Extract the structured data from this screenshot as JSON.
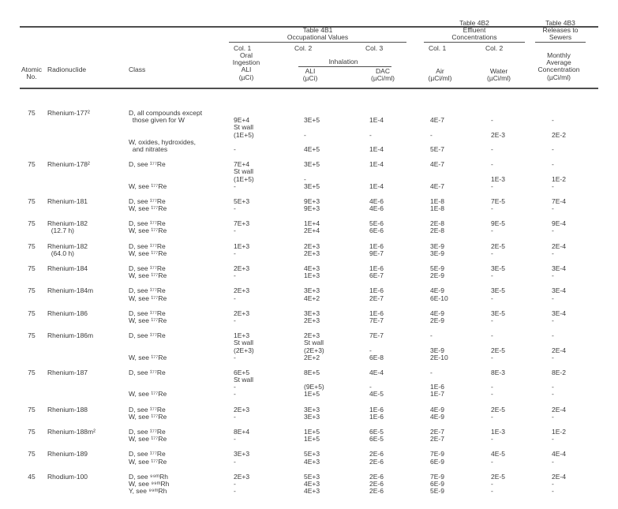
{
  "header": {
    "tables": {
      "t4b1": [
        "Table 4B1",
        "Occupational Values"
      ],
      "t4b2": [
        "Table 4B2",
        "Effluent",
        "Concentrations"
      ],
      "t4b3": [
        "Table 4B3",
        "Releases to",
        "Sewers"
      ]
    },
    "cols": {
      "oral": "Col. 1",
      "inhal": "Col. 2",
      "dac": "Col. 3",
      "air": "Col. 1",
      "water": "Col. 2"
    },
    "oral_stack": [
      "Oral",
      "Ingestion",
      "ALI",
      "(µCi)"
    ],
    "inhalation": "Inhalation",
    "inhal_stack": [
      "ALI",
      "(µCi)"
    ],
    "dac_stack": [
      "DAC",
      "(µCi/ml)"
    ],
    "air_stack": [
      "Air",
      "(µCi/ml)"
    ],
    "water_stack": [
      "Water",
      "(µCi/ml)"
    ],
    "monthly_stack": [
      "Monthly",
      "Average",
      "Concentration",
      "(µCi/ml)"
    ],
    "atomic_stack": [
      "Atomic",
      "No."
    ],
    "radionuclide": "Radionuclide",
    "class_label": "Class"
  },
  "rows": [
    {
      "atomic": "75",
      "name": [
        "Rhenium-177²"
      ],
      "cls": [
        "D, all compounds except",
        "  those given for W",
        "",
        "",
        "W, oxides, hydroxides,",
        "  and nitrates"
      ],
      "oral": [
        "",
        "9E+4",
        "St wall",
        "(1E+5)",
        "",
        "-"
      ],
      "inhal": [
        "",
        "3E+5",
        "",
        "-",
        "",
        "4E+5"
      ],
      "dac": [
        "",
        "1E-4",
        "",
        "-",
        "",
        "1E-4"
      ],
      "air": [
        "",
        "4E-7",
        "",
        "-",
        "",
        "5E-7"
      ],
      "water": [
        "",
        "-",
        "",
        "2E-3",
        "",
        "-"
      ],
      "monthly": [
        "",
        "-",
        "",
        "2E-2",
        "",
        "-"
      ]
    },
    {
      "atomic": "75",
      "name": [
        "Rhenium-178²"
      ],
      "cls": [
        "D, see ¹⁷⁷Re",
        "",
        "",
        "W, see ¹⁷⁷Re"
      ],
      "oral": [
        "7E+4",
        "St wall",
        "(1E+5)",
        "-"
      ],
      "inhal": [
        "3E+5",
        "",
        "-",
        "3E+5"
      ],
      "dac": [
        "1E-4",
        "",
        "",
        "1E-4"
      ],
      "air": [
        "4E-7",
        "",
        "",
        "4E-7"
      ],
      "water": [
        "-",
        "",
        "1E-3",
        "-"
      ],
      "monthly": [
        "-",
        "",
        "1E-2",
        "-"
      ]
    },
    {
      "atomic": "75",
      "name": [
        "Rhenium-181"
      ],
      "cls": [
        "D, see ¹⁷⁷Re",
        "W, see ¹⁷⁷Re"
      ],
      "oral": [
        "5E+3",
        "-"
      ],
      "inhal": [
        "9E+3",
        "9E+3"
      ],
      "dac": [
        "4E-6",
        "4E-6"
      ],
      "air": [
        "1E-8",
        "1E-8"
      ],
      "water": [
        "7E-5",
        "-"
      ],
      "monthly": [
        "7E-4",
        "-"
      ]
    },
    {
      "atomic": "75",
      "name": [
        "Rhenium-182",
        "  (12.7 h)"
      ],
      "cls": [
        "D, see ¹⁷⁷Re",
        "W, see ¹⁷⁷Re"
      ],
      "oral": [
        "7E+3",
        "-"
      ],
      "inhal": [
        "1E+4",
        "2E+4"
      ],
      "dac": [
        "5E-6",
        "6E-6"
      ],
      "air": [
        "2E-8",
        "2E-8"
      ],
      "water": [
        "9E-5",
        "-"
      ],
      "monthly": [
        "9E-4",
        "-"
      ]
    },
    {
      "atomic": "75",
      "name": [
        "Rhenium-182",
        "  (64.0 h)"
      ],
      "cls": [
        "D, see ¹⁷⁷Re",
        "W, see ¹⁷⁷Re"
      ],
      "oral": [
        "1E+3",
        "-"
      ],
      "inhal": [
        "2E+3",
        "2E+3"
      ],
      "dac": [
        "1E-6",
        "9E-7"
      ],
      "air": [
        "3E-9",
        "3E-9"
      ],
      "water": [
        "2E-5",
        "-"
      ],
      "monthly": [
        "2E-4",
        "-"
      ]
    },
    {
      "atomic": "75",
      "name": [
        "Rhenium-184"
      ],
      "cls": [
        "D, see ¹⁷⁷Re",
        "W, see ¹⁷⁷Re"
      ],
      "oral": [
        "2E+3",
        "-"
      ],
      "inhal": [
        "4E+3",
        "1E+3"
      ],
      "dac": [
        "1E-6",
        "6E-7"
      ],
      "air": [
        "5E-9",
        "2E-9"
      ],
      "water": [
        "3E-5",
        "-"
      ],
      "monthly": [
        "3E-4",
        "-"
      ]
    },
    {
      "atomic": "75",
      "name": [
        "Rhenium-184m"
      ],
      "cls": [
        "D, see ¹⁷⁷Re",
        "W, see ¹⁷⁷Re"
      ],
      "oral": [
        "2E+3",
        "-"
      ],
      "inhal": [
        "3E+3",
        "4E+2"
      ],
      "dac": [
        "1E-6",
        "2E-7"
      ],
      "air": [
        "4E-9",
        "6E-10"
      ],
      "water": [
        "3E-5",
        "-"
      ],
      "monthly": [
        "3E-4",
        "-"
      ]
    },
    {
      "atomic": "75",
      "name": [
        "Rhenium-186"
      ],
      "cls": [
        "D, see ¹⁷⁷Re",
        "W, see ¹⁷⁷Re"
      ],
      "oral": [
        "2E+3",
        "-"
      ],
      "inhal": [
        "3E+3",
        "2E+3"
      ],
      "dac": [
        "1E-6",
        "7E-7"
      ],
      "air": [
        "4E-9",
        "2E-9"
      ],
      "water": [
        "3E-5",
        "-"
      ],
      "monthly": [
        "3E-4",
        "-"
      ]
    },
    {
      "atomic": "75",
      "name": [
        "Rhenium-186m"
      ],
      "cls": [
        "D, see ¹⁷⁷Re",
        "",
        "",
        "W, see ¹⁷⁷Re"
      ],
      "oral": [
        "1E+3",
        "St wall",
        "(2E+3)",
        "-"
      ],
      "inhal": [
        "2E+3",
        "St wall",
        "(2E+3)",
        "2E+2"
      ],
      "dac": [
        "7E-7",
        "",
        "-",
        "6E-8"
      ],
      "air": [
        "-",
        "",
        "3E-9",
        "2E-10"
      ],
      "water": [
        "-",
        "",
        "2E-5",
        "-"
      ],
      "monthly": [
        "-",
        "",
        "2E-4",
        "-"
      ]
    },
    {
      "atomic": "75",
      "name": [
        "Rhenium-187"
      ],
      "cls": [
        "D, see ¹⁷⁷Re",
        "",
        "",
        "W, see ¹⁷⁷Re"
      ],
      "oral": [
        "6E+5",
        "St wall",
        "-",
        "-"
      ],
      "inhal": [
        "8E+5",
        "",
        "(9E+5)",
        "1E+5"
      ],
      "dac": [
        "4E-4",
        "",
        "-",
        "4E-5"
      ],
      "air": [
        "-",
        "",
        "1E-6",
        "1E-7"
      ],
      "water": [
        "8E-3",
        "",
        "-",
        "-"
      ],
      "monthly": [
        "8E-2",
        "",
        "-",
        "-"
      ]
    },
    {
      "atomic": "75",
      "name": [
        "Rhenium-188"
      ],
      "cls": [
        "D, see ¹⁷⁷Re",
        "W, see ¹⁷⁷Re"
      ],
      "oral": [
        "2E+3",
        "-"
      ],
      "inhal": [
        "3E+3",
        "3E+3"
      ],
      "dac": [
        "1E-6",
        "1E-6"
      ],
      "air": [
        "4E-9",
        "4E-9"
      ],
      "water": [
        "2E-5",
        "-"
      ],
      "monthly": [
        "2E-4",
        "-"
      ]
    },
    {
      "atomic": "75",
      "name": [
        "Rhenium-188m²"
      ],
      "cls": [
        "D, see ¹⁷⁷Re",
        "W, see ¹⁷⁷Re"
      ],
      "oral": [
        "8E+4",
        "-"
      ],
      "inhal": [
        "1E+5",
        "1E+5"
      ],
      "dac": [
        "6E-5",
        "6E-5"
      ],
      "air": [
        "2E-7",
        "2E-7"
      ],
      "water": [
        "1E-3",
        "-"
      ],
      "monthly": [
        "1E-2",
        "-"
      ]
    },
    {
      "atomic": "75",
      "name": [
        "Rhenium-189"
      ],
      "cls": [
        "D, see ¹⁷⁷Re",
        "W, see ¹⁷⁷Re"
      ],
      "oral": [
        "3E+3",
        "-"
      ],
      "inhal": [
        "5E+3",
        "4E+3"
      ],
      "dac": [
        "2E-6",
        "2E-6"
      ],
      "air": [
        "7E-9",
        "6E-9"
      ],
      "water": [
        "4E-5",
        "-"
      ],
      "monthly": [
        "4E-4",
        "-"
      ]
    },
    {
      "atomic": "45",
      "name": [
        "Rhodium-100"
      ],
      "cls": [
        "D, see ⁹⁹ᵐRh",
        "W, see ⁹⁹ᵐRh",
        "Y, see ⁹⁹ᵐRh"
      ],
      "oral": [
        "2E+3",
        "-",
        "-"
      ],
      "inhal": [
        "5E+3",
        "4E+3",
        "4E+3"
      ],
      "dac": [
        "2E-6",
        "2E-6",
        "2E-6"
      ],
      "air": [
        "7E-9",
        "6E-9",
        "5E-9"
      ],
      "water": [
        "2E-5",
        "-",
        "-"
      ],
      "monthly": [
        "2E-4",
        "-",
        "-"
      ]
    }
  ]
}
